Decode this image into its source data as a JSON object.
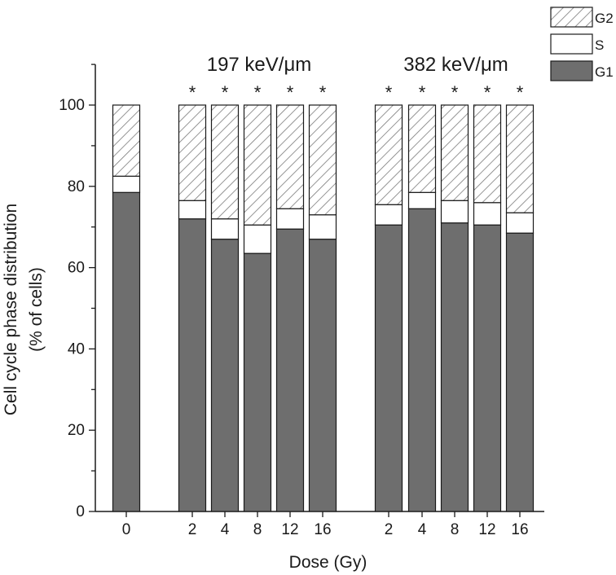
{
  "chart_data": {
    "type": "bar",
    "stacked": true,
    "categories": [
      "0",
      "2",
      "4",
      "8",
      "12",
      "16",
      "2",
      "4",
      "8",
      "12",
      "16"
    ],
    "series": [
      {
        "name": "G1",
        "color": "#6e6e6e",
        "pattern": "solid",
        "values": [
          78.5,
          72,
          67,
          63.5,
          69.5,
          67,
          70.5,
          74.5,
          71,
          70.5,
          68.5
        ]
      },
      {
        "name": "S",
        "color": "#ffffff",
        "pattern": "solid",
        "values": [
          4,
          4.5,
          5,
          7,
          5,
          6,
          5,
          4,
          5.5,
          5.5,
          5
        ]
      },
      {
        "name": "G2",
        "color": "#ffffff",
        "pattern": "hatched",
        "values": [
          17.5,
          23.5,
          28,
          29.5,
          25.5,
          27,
          24.5,
          21.5,
          23.5,
          24,
          26.5
        ]
      }
    ],
    "groups": [
      {
        "label": "197 keV/μm",
        "category_indices": [
          1,
          2,
          3,
          4,
          5
        ]
      },
      {
        "label": "382 keV/μm",
        "category_indices": [
          6,
          7,
          8,
          9,
          10
        ]
      }
    ],
    "significance_marks": [
      false,
      true,
      true,
      true,
      true,
      true,
      true,
      true,
      true,
      true,
      true
    ],
    "significance_symbol": "*",
    "xlabel": "Dose (Gy)",
    "ylabel_line1": "Cell cycle phase distribution",
    "ylabel_line2": "(% of cells)",
    "ylim": [
      0,
      110
    ],
    "yticks": [
      0,
      20,
      40,
      60,
      80,
      100
    ],
    "legend_position": "top-right",
    "legend_order": [
      "G2",
      "S",
      "G1"
    ],
    "grid": false
  }
}
